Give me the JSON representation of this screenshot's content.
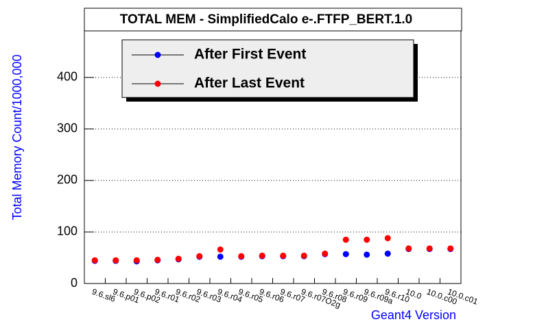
{
  "chart_data": {
    "type": "scatter",
    "title": "TOTAL MEM - SimplifiedCalo e-.FTFP_BERT.1.0",
    "xlabel": "Geant4 Version",
    "ylabel": "Total Memory Count/1000,000",
    "categories": [
      "9.6.sl6",
      "9.6.p01",
      "9.6.p02",
      "9.6.r01",
      "9.6.r02",
      "9.6.r03",
      "9.6.r04",
      "9.6.r05",
      "9.6.r06",
      "9.6.r07",
      "9.6.r07O2g",
      "9.6.r08",
      "9.6.r09",
      "9.6.r09a",
      "9.6.r10",
      "10.0",
      "10.0.c00",
      "10.0.c01"
    ],
    "series": [
      {
        "name": "After First Event",
        "color": "#0000ff",
        "values": [
          44,
          44,
          43,
          45,
          47,
          52,
          52,
          52,
          53,
          53,
          53,
          57,
          57,
          56,
          58,
          67,
          67,
          67
        ]
      },
      {
        "name": "After Last Event",
        "color": "#ff0000",
        "values": [
          45,
          45,
          45,
          46,
          48,
          53,
          66,
          53,
          54,
          54,
          54,
          58,
          85,
          85,
          88,
          68,
          68,
          68
        ]
      }
    ],
    "ylim": [
      0,
      497
    ],
    "yticks": [
      0,
      100,
      200,
      300,
      400
    ],
    "grid": true,
    "legend": "top"
  }
}
